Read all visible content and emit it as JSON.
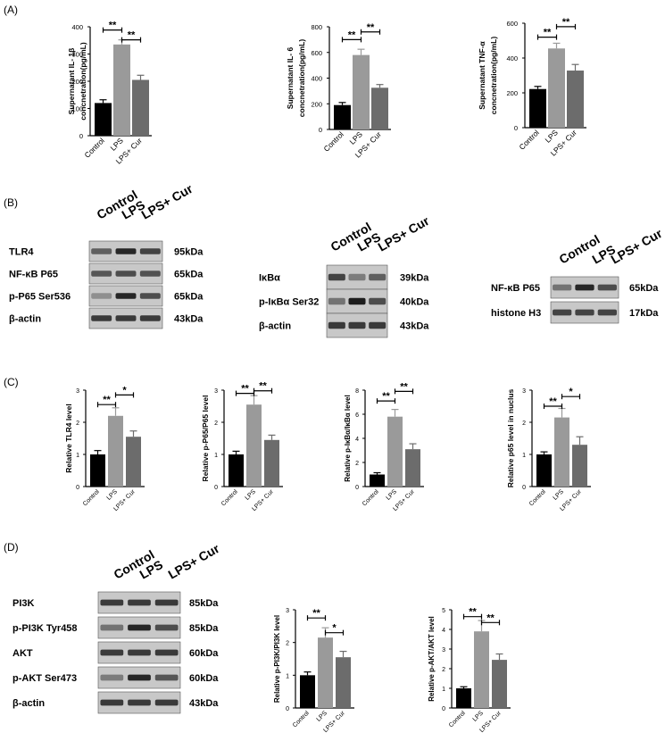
{
  "panels": {
    "A": "(A)",
    "B": "(B)",
    "C": "(C)",
    "D": "(D)"
  },
  "colors": {
    "control": "#000000",
    "lps": "#9a9a9a",
    "lps_cur": "#6c6c6c"
  },
  "chart_data": [
    {
      "type": "bar",
      "panel": "A",
      "ylabel": [
        "Supernatant IL- 1β",
        "concnetration(pg/mL)"
      ],
      "categories": [
        "Control",
        "LPS",
        "LPS+ Cur"
      ],
      "values": [
        120,
        335,
        205
      ],
      "errors": [
        12,
        17,
        17
      ],
      "ylim": [
        0,
        400
      ],
      "yticks": [
        "0",
        "100",
        "200",
        "300",
        "400"
      ],
      "significance": [
        {
          "from": 0,
          "to": 1,
          "label": "**",
          "y": 388
        },
        {
          "from": 1,
          "to": 2,
          "label": "**",
          "y": 352
        }
      ]
    },
    {
      "type": "bar",
      "panel": "A",
      "ylabel": [
        "Supernatant IL- 6",
        "concnetration(pg/mL)"
      ],
      "categories": [
        "Control",
        "LPS",
        "LPS+ Cur"
      ],
      "values": [
        190,
        580,
        325
      ],
      "errors": [
        20,
        45,
        25
      ],
      "ylim": [
        0,
        800
      ],
      "yticks": [
        "0",
        "200",
        "400",
        "600",
        "800"
      ],
      "significance": [
        {
          "from": 0,
          "to": 1,
          "label": "**",
          "y": 700
        },
        {
          "from": 1,
          "to": 2,
          "label": "**",
          "y": 760
        }
      ]
    },
    {
      "type": "bar",
      "panel": "A",
      "ylabel": [
        "Supernatant TNF-α",
        "concnetration(pg/mL)"
      ],
      "categories": [
        "Control",
        "LPS",
        "LPS+ Cur"
      ],
      "values": [
        222,
        455,
        328
      ],
      "errors": [
        15,
        30,
        35
      ],
      "ylim": [
        0,
        600
      ],
      "yticks": [
        "0",
        "200",
        "400",
        "600"
      ],
      "significance": [
        {
          "from": 0,
          "to": 1,
          "label": "**",
          "y": 520
        },
        {
          "from": 1,
          "to": 2,
          "label": "**",
          "y": 580
        }
      ]
    },
    {
      "type": "bar",
      "panel": "C",
      "ylabel": [
        "Relative TLR4 level"
      ],
      "categories": [
        "Control",
        "LPS",
        "LPS+ Cur"
      ],
      "values": [
        1.0,
        2.2,
        1.55
      ],
      "errors": [
        0.12,
        0.25,
        0.18
      ],
      "ylim": [
        0,
        3
      ],
      "yticks": [
        "0",
        "1",
        "2",
        "3"
      ],
      "significance": [
        {
          "from": 0,
          "to": 1,
          "label": "**",
          "y": 2.55
        },
        {
          "from": 1,
          "to": 2,
          "label": "*",
          "y": 2.85
        }
      ]
    },
    {
      "type": "bar",
      "panel": "C",
      "ylabel": [
        "Relative p-P65/P65 level"
      ],
      "categories": [
        "Control",
        "LPS",
        "LPS+ Cur"
      ],
      "values": [
        1.0,
        2.55,
        1.45
      ],
      "errors": [
        0.1,
        0.28,
        0.15
      ],
      "ylim": [
        0,
        3
      ],
      "yticks": [
        "0",
        "1",
        "2",
        "3"
      ],
      "significance": [
        {
          "from": 0,
          "to": 1,
          "label": "**",
          "y": 2.9
        },
        {
          "from": 1,
          "to": 2,
          "label": "**",
          "y": 2.98
        }
      ]
    },
    {
      "type": "bar",
      "panel": "C",
      "ylabel": [
        "Relative p-IκBα/IκBα level"
      ],
      "categories": [
        "Control",
        "LPS",
        "LPS+ Cur"
      ],
      "values": [
        1.0,
        5.8,
        3.1
      ],
      "errors": [
        0.15,
        0.6,
        0.45
      ],
      "ylim": [
        0,
        8
      ],
      "yticks": [
        "0",
        "2",
        "4",
        "6",
        "8"
      ],
      "significance": [
        {
          "from": 0,
          "to": 1,
          "label": "**",
          "y": 7.1
        },
        {
          "from": 1,
          "to": 2,
          "label": "**",
          "y": 7.9
        }
      ]
    },
    {
      "type": "bar",
      "panel": "C",
      "ylabel": [
        "Relative p65 level in nuclus"
      ],
      "categories": [
        "Control",
        "LPS",
        "LPS+ Cur"
      ],
      "values": [
        1.0,
        2.15,
        1.3
      ],
      "errors": [
        0.08,
        0.28,
        0.25
      ],
      "ylim": [
        0,
        3
      ],
      "yticks": [
        "0",
        "1",
        "2",
        "3"
      ],
      "significance": [
        {
          "from": 0,
          "to": 1,
          "label": "**",
          "y": 2.5
        },
        {
          "from": 1,
          "to": 2,
          "label": "*",
          "y": 2.8
        }
      ]
    },
    {
      "type": "bar",
      "panel": "D",
      "ylabel": [
        "Relative p-PI3K/PI3K level"
      ],
      "categories": [
        "Control",
        "LPS",
        "LPS+ Cur"
      ],
      "values": [
        1.0,
        2.15,
        1.55
      ],
      "errors": [
        0.1,
        0.3,
        0.18
      ],
      "ylim": [
        0,
        3
      ],
      "yticks": [
        "0",
        "1",
        "2",
        "3"
      ],
      "significance": [
        {
          "from": 0,
          "to": 1,
          "label": "**",
          "y": 2.75
        },
        {
          "from": 1,
          "to": 2,
          "label": "*",
          "y": 2.3
        }
      ]
    },
    {
      "type": "bar",
      "panel": "D",
      "ylabel": [
        "Relative p-AKT/AKT level"
      ],
      "categories": [
        "Control",
        "LPS",
        "LPS+ Cur"
      ],
      "values": [
        1.0,
        3.9,
        2.45
      ],
      "errors": [
        0.08,
        0.55,
        0.3
      ],
      "ylim": [
        0,
        5
      ],
      "yticks": [
        "0",
        "1",
        "2",
        "3",
        "4",
        "5"
      ],
      "significance": [
        {
          "from": 0,
          "to": 1,
          "label": "**",
          "y": 4.65
        },
        {
          "from": 1,
          "to": 2,
          "label": "**",
          "y": 4.35
        }
      ]
    }
  ],
  "blots": [
    {
      "panel": "B",
      "lanes": [
        "Control",
        "LPS",
        "LPS+ Cur"
      ],
      "rows": [
        {
          "label": "TLR4",
          "kda": "95kDa",
          "intensity": [
            0.55,
            0.85,
            0.7
          ]
        },
        {
          "label": "NF-κB P65",
          "kda": "65kDa",
          "intensity": [
            0.6,
            0.65,
            0.62
          ]
        },
        {
          "label": "p-P65 Ser536",
          "kda": "65kDa",
          "intensity": [
            0.3,
            0.85,
            0.65
          ]
        },
        {
          "label": "β-actin",
          "kda": "43kDa",
          "intensity": [
            0.75,
            0.75,
            0.75
          ]
        }
      ]
    },
    {
      "panel": "B",
      "lanes": [
        "Control",
        "LPS",
        "LPS+ Cur"
      ],
      "rows": [
        {
          "label": "IκBα",
          "kda": "39kDa",
          "intensity": [
            0.7,
            0.4,
            0.55
          ]
        },
        {
          "label": "p-IκBα Ser32",
          "kda": "40kDa",
          "intensity": [
            0.45,
            0.9,
            0.65
          ]
        },
        {
          "label": "β-actin",
          "kda": "43kDa",
          "intensity": [
            0.75,
            0.75,
            0.75
          ]
        }
      ]
    },
    {
      "panel": "B",
      "lanes": [
        "Control",
        "LPS",
        "LPS+ Cur"
      ],
      "rows": [
        {
          "label": "NF-κB P65",
          "kda": "65kDa",
          "intensity": [
            0.45,
            0.85,
            0.65
          ]
        },
        {
          "label": "histone H3",
          "kda": "17kDa",
          "intensity": [
            0.7,
            0.7,
            0.7
          ]
        }
      ]
    },
    {
      "panel": "D",
      "lanes": [
        "Control",
        "LPS",
        "LPS+ Cur"
      ],
      "rows": [
        {
          "label": "PI3K",
          "kda": "85kDa",
          "intensity": [
            0.75,
            0.75,
            0.75
          ]
        },
        {
          "label": "p-PI3K Tyr458",
          "kda": "85kDa",
          "intensity": [
            0.45,
            0.85,
            0.65
          ]
        },
        {
          "label": "AKT",
          "kda": "60kDa",
          "intensity": [
            0.75,
            0.75,
            0.75
          ]
        },
        {
          "label": "p-AKT Ser473",
          "kda": "60kDa",
          "intensity": [
            0.4,
            0.85,
            0.6
          ]
        },
        {
          "label": "β-actin",
          "kda": "43kDa",
          "intensity": [
            0.75,
            0.75,
            0.75
          ]
        }
      ]
    }
  ]
}
